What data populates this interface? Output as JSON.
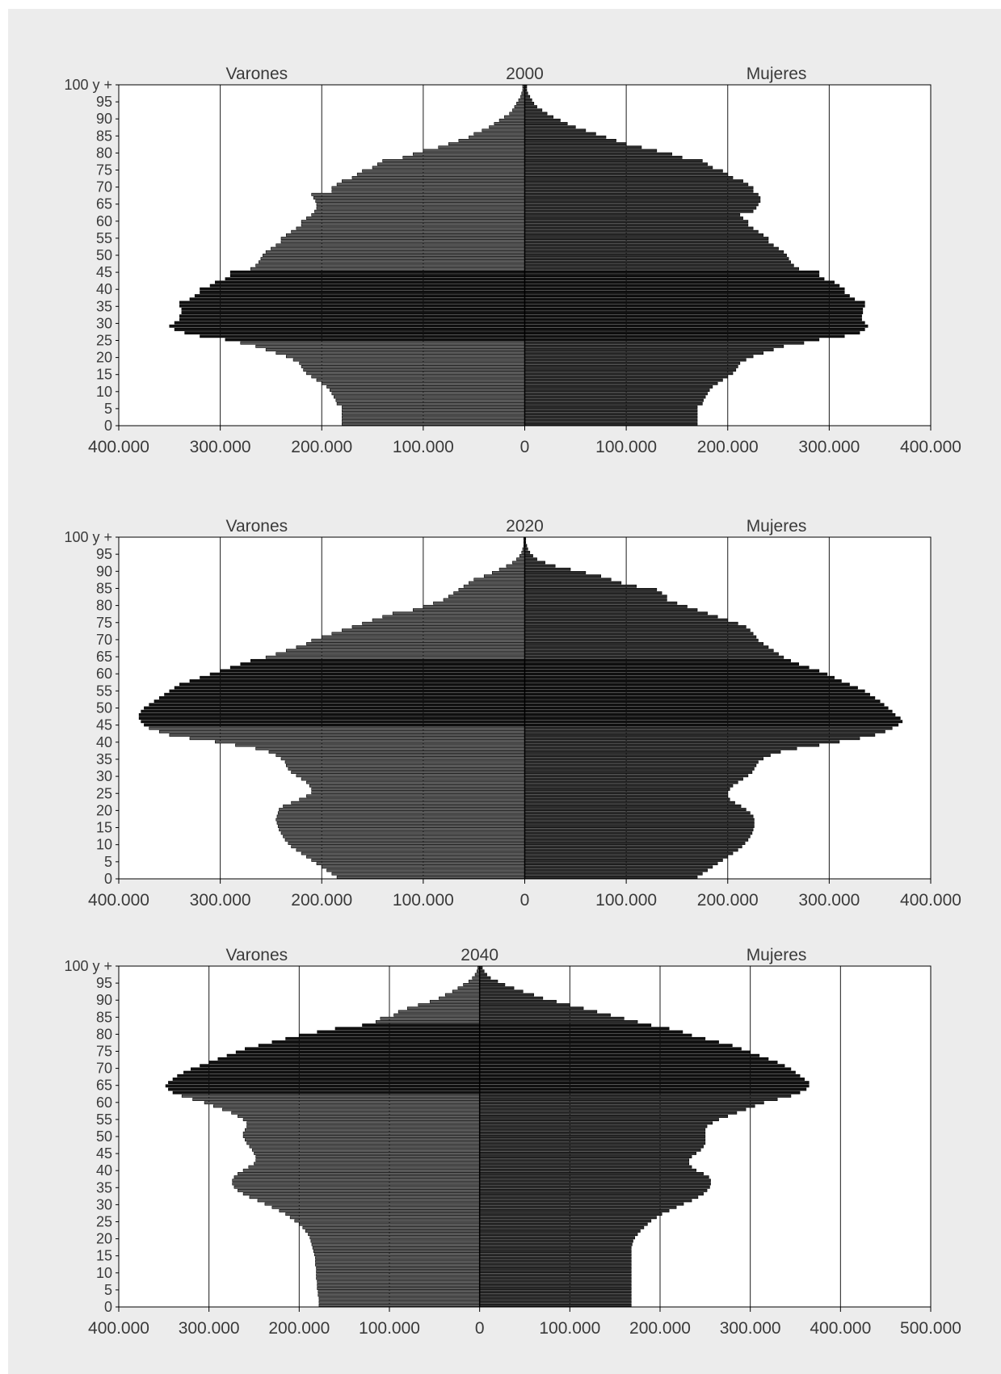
{
  "chart_data": [
    {
      "type": "bar",
      "subtype": "population-pyramid",
      "title": "2000",
      "left_label": "Varones",
      "right_label": "Mujeres",
      "x_ticks": [
        "400.000",
        "300.000",
        "200.000",
        "100.000",
        "0",
        "100.000",
        "200.000",
        "300.000",
        "400.000"
      ],
      "xlim": [
        -400000,
        400000
      ],
      "y_ticks": [
        "0",
        "5",
        "10",
        "15",
        "20",
        "25",
        "30",
        "35",
        "40",
        "45",
        "50",
        "55",
        "60",
        "65",
        "70",
        "75",
        "80",
        "85",
        "90",
        "95",
        "100 y +"
      ],
      "grid": "vertical",
      "age_step": 1,
      "series": [
        {
          "name": "Varones",
          "values": [
            180000,
            180000,
            180000,
            180000,
            180000,
            180000,
            185000,
            186000,
            188000,
            190000,
            192000,
            195000,
            200000,
            205000,
            210000,
            215000,
            218000,
            220000,
            222000,
            228000,
            235000,
            245000,
            255000,
            265000,
            280000,
            295000,
            320000,
            335000,
            345000,
            350000,
            345000,
            340000,
            340000,
            338000,
            338000,
            340000,
            340000,
            330000,
            325000,
            320000,
            320000,
            310000,
            305000,
            295000,
            290000,
            290000,
            270000,
            265000,
            262000,
            260000,
            258000,
            255000,
            250000,
            245000,
            240000,
            240000,
            235000,
            230000,
            225000,
            220000,
            220000,
            215000,
            210000,
            207000,
            205000,
            205000,
            206000,
            208000,
            210000,
            190000,
            190000,
            185000,
            180000,
            170000,
            165000,
            160000,
            150000,
            145000,
            140000,
            120000,
            110000,
            100000,
            85000,
            75000,
            65000,
            55000,
            50000,
            42000,
            35000,
            30000,
            25000,
            20000,
            15000,
            12000,
            10000,
            8000,
            6000,
            4000,
            3000,
            2000,
            2000
          ]
        },
        {
          "name": "Mujeres",
          "values": [
            170000,
            170000,
            170000,
            170000,
            170000,
            170000,
            175000,
            176000,
            178000,
            180000,
            182000,
            185000,
            190000,
            195000,
            200000,
            205000,
            208000,
            210000,
            212000,
            218000,
            225000,
            235000,
            245000,
            255000,
            275000,
            290000,
            315000,
            330000,
            335000,
            338000,
            335000,
            332000,
            332000,
            333000,
            333000,
            335000,
            335000,
            325000,
            320000,
            315000,
            315000,
            310000,
            305000,
            295000,
            290000,
            290000,
            270000,
            265000,
            262000,
            260000,
            258000,
            255000,
            250000,
            245000,
            240000,
            240000,
            235000,
            230000,
            225000,
            220000,
            220000,
            215000,
            212000,
            225000,
            228000,
            230000,
            232000,
            232000,
            230000,
            225000,
            225000,
            220000,
            215000,
            205000,
            200000,
            195000,
            185000,
            180000,
            175000,
            155000,
            145000,
            130000,
            115000,
            100000,
            90000,
            80000,
            70000,
            60000,
            50000,
            42000,
            35000,
            28000,
            22000,
            17000,
            12000,
            9000,
            7000,
            5000,
            3000,
            2000,
            2000
          ]
        }
      ]
    },
    {
      "type": "bar",
      "subtype": "population-pyramid",
      "title": "2020",
      "left_label": "Varones",
      "right_label": "Mujeres",
      "x_ticks": [
        "400.000",
        "300.000",
        "200.000",
        "100.000",
        "0",
        "100.000",
        "200.000",
        "300.000",
        "400.000"
      ],
      "xlim": [
        -400000,
        400000
      ],
      "y_ticks": [
        "0",
        "5",
        "10",
        "15",
        "20",
        "25",
        "30",
        "35",
        "40",
        "45",
        "50",
        "55",
        "60",
        "65",
        "70",
        "75",
        "80",
        "85",
        "90",
        "95",
        "100 y +"
      ],
      "grid": "vertical",
      "age_step": 1,
      "series": [
        {
          "name": "Varones",
          "values": [
            185000,
            190000,
            195000,
            200000,
            205000,
            210000,
            215000,
            220000,
            225000,
            230000,
            233000,
            236000,
            238000,
            240000,
            242000,
            243000,
            244000,
            245000,
            244000,
            243000,
            242000,
            238000,
            230000,
            222000,
            215000,
            210000,
            210000,
            212000,
            215000,
            220000,
            225000,
            230000,
            233000,
            235000,
            236000,
            240000,
            245000,
            252000,
            265000,
            285000,
            305000,
            330000,
            350000,
            360000,
            370000,
            375000,
            378000,
            380000,
            380000,
            378000,
            375000,
            370000,
            365000,
            360000,
            355000,
            350000,
            345000,
            340000,
            330000,
            320000,
            310000,
            300000,
            290000,
            280000,
            270000,
            255000,
            245000,
            235000,
            225000,
            215000,
            210000,
            200000,
            190000,
            180000,
            170000,
            160000,
            150000,
            140000,
            130000,
            110000,
            100000,
            90000,
            80000,
            75000,
            70000,
            65000,
            60000,
            55000,
            50000,
            40000,
            32000,
            25000,
            18000,
            12000,
            8000,
            5000,
            3000,
            2000,
            1000,
            1000,
            1000
          ]
        },
        {
          "name": "Mujeres",
          "values": [
            170000,
            175000,
            180000,
            185000,
            190000,
            195000,
            200000,
            205000,
            210000,
            214000,
            217000,
            220000,
            222000,
            224000,
            225000,
            226000,
            226000,
            226000,
            225000,
            222000,
            218000,
            213000,
            207000,
            202000,
            200000,
            200000,
            202000,
            205000,
            210000,
            215000,
            220000,
            224000,
            226000,
            228000,
            230000,
            235000,
            242000,
            252000,
            268000,
            290000,
            310000,
            330000,
            345000,
            355000,
            362000,
            368000,
            372000,
            370000,
            365000,
            362000,
            358000,
            354000,
            350000,
            345000,
            340000,
            335000,
            328000,
            320000,
            312000,
            305000,
            298000,
            290000,
            280000,
            270000,
            262000,
            255000,
            250000,
            245000,
            240000,
            235000,
            230000,
            228000,
            225000,
            222000,
            218000,
            210000,
            200000,
            190000,
            180000,
            170000,
            160000,
            150000,
            140000,
            140000,
            135000,
            130000,
            110000,
            95000,
            85000,
            75000,
            60000,
            45000,
            30000,
            20000,
            12000,
            8000,
            5000,
            3000,
            2000,
            1000,
            1000
          ]
        }
      ]
    },
    {
      "type": "bar",
      "subtype": "population-pyramid",
      "title": "2040",
      "left_label": "Varones",
      "right_label": "Mujeres",
      "x_ticks": [
        "400.000",
        "300.000",
        "200.000",
        "100.000",
        "0",
        "100.000",
        "200.000",
        "300.000",
        "400.000",
        "500.000"
      ],
      "xlim": [
        -400000,
        500000
      ],
      "y_ticks": [
        "0",
        "5",
        "10",
        "15",
        "20",
        "25",
        "30",
        "35",
        "40",
        "45",
        "50",
        "55",
        "60",
        "65",
        "70",
        "75",
        "80",
        "85",
        "90",
        "95",
        "100 y +"
      ],
      "grid": "vertical",
      "age_step": 1,
      "series": [
        {
          "name": "Varones",
          "values": [
            178000,
            178000,
            178000,
            179000,
            179000,
            180000,
            180000,
            180000,
            181000,
            181000,
            181000,
            181000,
            182000,
            182000,
            182000,
            183000,
            184000,
            185000,
            186000,
            187000,
            188000,
            190000,
            193000,
            196000,
            200000,
            205000,
            210000,
            215000,
            222000,
            230000,
            238000,
            246000,
            255000,
            262000,
            268000,
            272000,
            274000,
            274000,
            272000,
            268000,
            262000,
            256000,
            250000,
            248000,
            248000,
            250000,
            252000,
            255000,
            258000,
            260000,
            262000,
            262000,
            260000,
            258000,
            258000,
            262000,
            268000,
            275000,
            285000,
            295000,
            305000,
            318000,
            330000,
            340000,
            345000,
            348000,
            345000,
            340000,
            335000,
            328000,
            320000,
            310000,
            300000,
            290000,
            280000,
            270000,
            260000,
            245000,
            230000,
            215000,
            200000,
            180000,
            160000,
            130000,
            115000,
            110000,
            95000,
            90000,
            80000,
            68000,
            55000,
            45000,
            38000,
            30000,
            24000,
            18000,
            12000,
            8000,
            5000,
            3000,
            2000
          ]
        },
        {
          "name": "Mujeres",
          "values": [
            168000,
            168000,
            168000,
            168000,
            168000,
            168000,
            168000,
            168000,
            168000,
            168000,
            168000,
            168000,
            168000,
            168000,
            168000,
            168000,
            168000,
            168000,
            169000,
            170000,
            172000,
            175000,
            178000,
            182000,
            186000,
            190000,
            196000,
            202000,
            210000,
            218000,
            226000,
            235000,
            242000,
            248000,
            252000,
            255000,
            256000,
            256000,
            254000,
            248000,
            240000,
            235000,
            232000,
            232000,
            235000,
            240000,
            245000,
            248000,
            250000,
            250000,
            250000,
            250000,
            250000,
            252000,
            258000,
            265000,
            275000,
            285000,
            295000,
            305000,
            315000,
            330000,
            345000,
            355000,
            362000,
            365000,
            365000,
            360000,
            355000,
            350000,
            345000,
            338000,
            330000,
            320000,
            310000,
            300000,
            290000,
            280000,
            265000,
            250000,
            235000,
            225000,
            210000,
            190000,
            175000,
            160000,
            145000,
            130000,
            115000,
            100000,
            85000,
            70000,
            60000,
            48000,
            38000,
            28000,
            20000,
            12000,
            8000,
            5000,
            3000
          ]
        }
      ]
    }
  ]
}
